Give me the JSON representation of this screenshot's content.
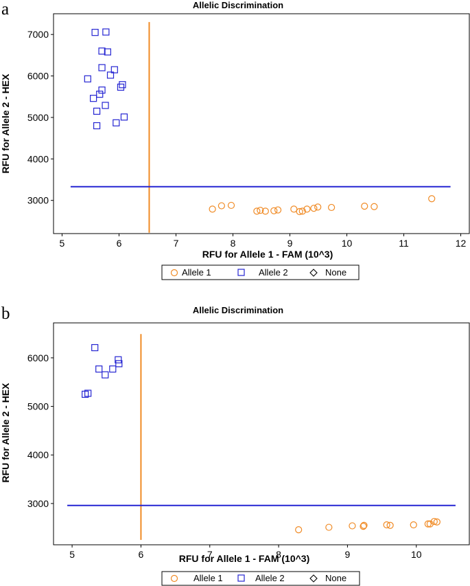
{
  "colors": {
    "allele1": "#f08a24",
    "allele2": "#2424d2",
    "threshold_x": "#f08a24",
    "threshold_y": "#2424d2",
    "none": "#000000"
  },
  "chart_data": [
    {
      "panel": "a",
      "type": "scatter",
      "title": "Allelic Discrimination",
      "xlabel": "RFU for Allele 1 - FAM (10^3)",
      "ylabel": "RFU for Allele 2 - HEX",
      "xlim": [
        4.85,
        12.15
      ],
      "ylim": [
        2200,
        7500
      ],
      "xticks": [
        5,
        6,
        7,
        8,
        9,
        10,
        11,
        12
      ],
      "yticks": [
        3000,
        4000,
        5000,
        6000,
        7000
      ],
      "thresholds": {
        "x": 6.53,
        "x_span": [
          2220,
          7300
        ],
        "y": 3330,
        "y_span": [
          5.15,
          11.82
        ]
      },
      "legend": [
        "Allele 1",
        "Allele 2",
        "None"
      ],
      "series": [
        {
          "name": "Allele 2",
          "marker": "square",
          "x": [
            5.58,
            5.77,
            5.7,
            5.8,
            5.7,
            5.92,
            5.45,
            5.85,
            6.06,
            5.7,
            6.03,
            5.66,
            5.55,
            5.76,
            5.61,
            6.09,
            5.95,
            5.61
          ],
          "y": [
            7050,
            7060,
            6600,
            6580,
            6200,
            6150,
            5930,
            6020,
            5790,
            5660,
            5730,
            5560,
            5460,
            5290,
            5150,
            5010,
            4870,
            4800
          ]
        },
        {
          "name": "Allele 1",
          "marker": "circle",
          "x": [
            7.64,
            7.8,
            7.97,
            8.42,
            8.48,
            8.57,
            8.72,
            8.79,
            9.07,
            9.17,
            9.22,
            9.3,
            9.42,
            9.49,
            9.73,
            10.31,
            10.48,
            11.49
          ],
          "y": [
            2790,
            2870,
            2880,
            2740,
            2760,
            2740,
            2750,
            2770,
            2790,
            2730,
            2740,
            2790,
            2810,
            2840,
            2830,
            2860,
            2850,
            3040
          ]
        }
      ]
    },
    {
      "panel": "b",
      "type": "scatter",
      "title": "Allelic Discrimination",
      "xlabel": "RFU for Allele 1 - FAM (10^3)",
      "ylabel": "RFU for Allele 2 - HEX",
      "xlim": [
        4.73,
        10.77
      ],
      "ylim": [
        2150,
        6720
      ],
      "xticks": [
        5,
        6,
        7,
        8,
        9,
        10
      ],
      "yticks": [
        3000,
        4000,
        5000,
        6000
      ],
      "thresholds": {
        "x": 6.0,
        "x_span": [
          2250,
          6490
        ],
        "y": 2960,
        "y_span": [
          4.93,
          10.57
        ]
      },
      "legend": [
        "Allele 1",
        "Allele 2",
        "None"
      ],
      "series": [
        {
          "name": "Allele 2",
          "marker": "square",
          "x": [
            5.33,
            5.67,
            5.68,
            5.59,
            5.39,
            5.48,
            5.23,
            5.19
          ],
          "y": [
            6210,
            5960,
            5880,
            5770,
            5770,
            5650,
            5270,
            5250
          ]
        },
        {
          "name": "Allele 1",
          "marker": "circle",
          "x": [
            8.29,
            8.73,
            9.07,
            9.23,
            9.24,
            9.57,
            9.62,
            9.96,
            10.17,
            10.2,
            10.26,
            10.3
          ],
          "y": [
            2460,
            2510,
            2540,
            2530,
            2550,
            2560,
            2550,
            2560,
            2580,
            2580,
            2630,
            2620
          ]
        }
      ]
    }
  ]
}
